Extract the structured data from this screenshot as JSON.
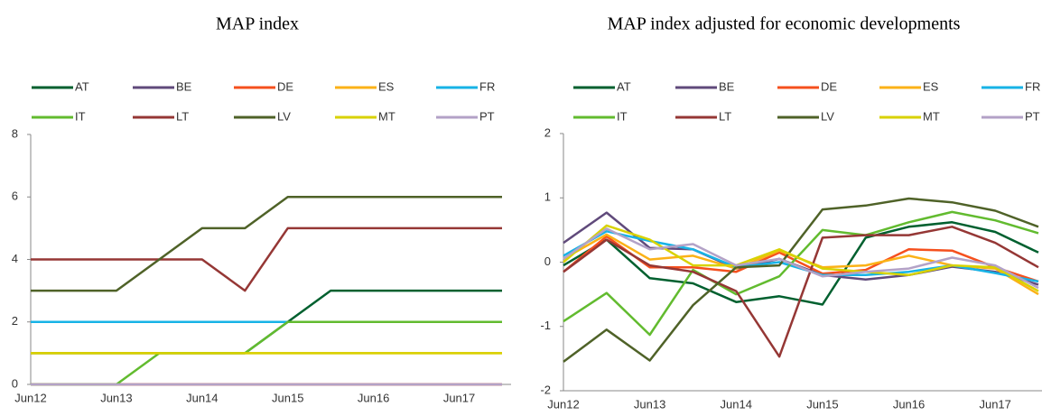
{
  "chart_data": [
    {
      "type": "line",
      "title": "MAP index",
      "categories": [
        "Jun12",
        null,
        "Jun13",
        null,
        "Jun14",
        null,
        "Jun15",
        null,
        "Jun16",
        null,
        "Jun17",
        null
      ],
      "ylim": [
        0,
        8
      ],
      "yticks": [
        0,
        2,
        4,
        6,
        8
      ],
      "series": [
        {
          "name": "AT",
          "color": "#00602f",
          "values": [
            1,
            1,
            1,
            1,
            1,
            1,
            2,
            3,
            3,
            3,
            3,
            3
          ]
        },
        {
          "name": "BE",
          "color": "#604a7b",
          "values": [
            0,
            0,
            0,
            0,
            0,
            0,
            0,
            0,
            0,
            0,
            0,
            0
          ]
        },
        {
          "name": "DE",
          "color": "#f5501e",
          "values": [
            0,
            0,
            0,
            0,
            0,
            0,
            0,
            0,
            0,
            0,
            0,
            0
          ]
        },
        {
          "name": "ES",
          "color": "#fbb217",
          "values": [
            1,
            1,
            1,
            1,
            1,
            1,
            1,
            1,
            1,
            1,
            1,
            1
          ]
        },
        {
          "name": "FR",
          "color": "#17b3e6",
          "values": [
            2,
            2,
            2,
            2,
            2,
            2,
            2,
            2,
            2,
            2,
            2,
            2
          ]
        },
        {
          "name": "IT",
          "color": "#62bb2f",
          "values": [
            0,
            0,
            0,
            1,
            1,
            1,
            2,
            2,
            2,
            2,
            2,
            2
          ]
        },
        {
          "name": "LT",
          "color": "#953735",
          "values": [
            4,
            4,
            4,
            4,
            4,
            3,
            5,
            5,
            5,
            5,
            5,
            5
          ]
        },
        {
          "name": "LV",
          "color": "#4f6228",
          "values": [
            3,
            3,
            3,
            4,
            5,
            5,
            6,
            6,
            6,
            6,
            6,
            6
          ]
        },
        {
          "name": "MT",
          "color": "#d8d200",
          "values": [
            1,
            1,
            1,
            1,
            1,
            1,
            1,
            1,
            1,
            1,
            1,
            1
          ]
        },
        {
          "name": "PT",
          "color": "#b3a2c7",
          "values": [
            0,
            0,
            0,
            0,
            0,
            0,
            0,
            0,
            0,
            0,
            0,
            0
          ]
        }
      ]
    },
    {
      "type": "line",
      "title": "MAP index adjusted for economic developments",
      "categories": [
        "Jun12",
        null,
        "Jun13",
        null,
        "Jun14",
        null,
        "Jun15",
        null,
        "Jun16",
        null,
        "Jun17",
        null
      ],
      "ylim": [
        -2,
        2
      ],
      "yticks": [
        -2,
        -1,
        0,
        1,
        2
      ],
      "series": [
        {
          "name": "AT",
          "color": "#00602f",
          "values": [
            -0.05,
            0.35,
            -0.25,
            -0.33,
            -0.62,
            -0.53,
            -0.66,
            0.38,
            0.55,
            0.62,
            0.47,
            0.15
          ]
        },
        {
          "name": "BE",
          "color": "#604a7b",
          "values": [
            0.3,
            0.77,
            0.22,
            0.2,
            -0.1,
            0.05,
            -0.2,
            -0.27,
            -0.2,
            -0.07,
            -0.15,
            -0.35
          ]
        },
        {
          "name": "DE",
          "color": "#f5501e",
          "values": [
            -0.15,
            0.4,
            -0.08,
            -0.08,
            -0.15,
            0.15,
            -0.18,
            -0.12,
            0.2,
            0.18,
            -0.08,
            -0.3
          ]
        },
        {
          "name": "ES",
          "color": "#fbb217",
          "values": [
            0.05,
            0.43,
            0.04,
            0.1,
            -0.1,
            0.18,
            -0.08,
            -0.05,
            0.1,
            -0.05,
            -0.1,
            -0.5
          ]
        },
        {
          "name": "FR",
          "color": "#17b3e6",
          "values": [
            0.1,
            0.48,
            0.33,
            0.2,
            -0.08,
            0.0,
            -0.2,
            -0.2,
            -0.15,
            -0.05,
            -0.17,
            -0.3
          ]
        },
        {
          "name": "IT",
          "color": "#62bb2f",
          "values": [
            -0.92,
            -0.48,
            -1.13,
            -0.12,
            -0.5,
            -0.22,
            0.5,
            0.42,
            0.62,
            0.78,
            0.65,
            0.45
          ]
        },
        {
          "name": "LT",
          "color": "#953735",
          "values": [
            -0.15,
            0.35,
            -0.05,
            -0.15,
            -0.45,
            -1.47,
            0.38,
            0.42,
            0.42,
            0.55,
            0.3,
            -0.08
          ]
        },
        {
          "name": "LV",
          "color": "#4f6228",
          "values": [
            -1.55,
            -1.05,
            -1.53,
            -0.67,
            -0.08,
            -0.05,
            0.82,
            0.88,
            0.99,
            0.93,
            0.8,
            0.55
          ]
        },
        {
          "name": "MT",
          "color": "#d8d200",
          "values": [
            0.0,
            0.57,
            0.35,
            -0.05,
            -0.05,
            0.2,
            -0.1,
            -0.15,
            -0.2,
            -0.05,
            -0.08,
            -0.45
          ]
        },
        {
          "name": "PT",
          "color": "#b3a2c7",
          "values": [
            0.05,
            0.52,
            0.2,
            0.28,
            -0.05,
            0.05,
            -0.22,
            -0.15,
            -0.1,
            0.07,
            -0.05,
            -0.4
          ]
        }
      ]
    }
  ]
}
